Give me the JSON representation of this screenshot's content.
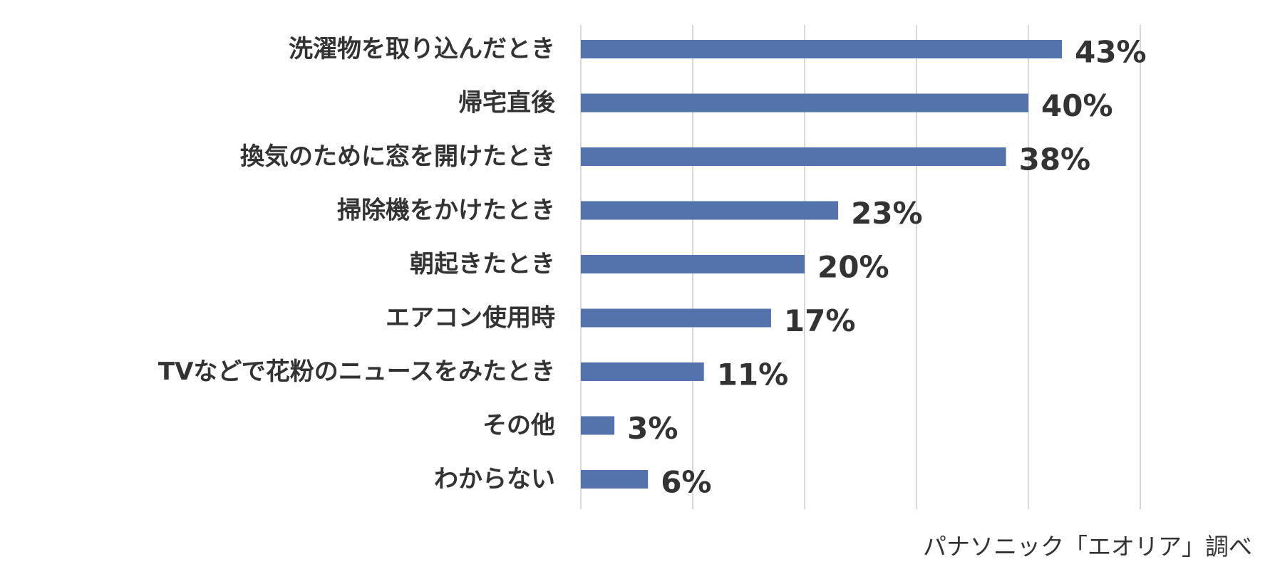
{
  "chart_data": {
    "type": "bar",
    "orientation": "horizontal",
    "categories": [
      "洗濯物を取り込んだとき",
      "帰宅直後",
      "換気のために窓を開けたとき",
      "掃除機をかけたとき",
      "朝起きたとき",
      "エアコン使用時",
      "TVなどで花粉のニュースをみたとき",
      "その他",
      "わからない"
    ],
    "values": [
      43,
      40,
      38,
      23,
      20,
      17,
      11,
      3,
      6
    ],
    "value_labels": [
      "43%",
      "40%",
      "38%",
      "23%",
      "20%",
      "17%",
      "11%",
      "3%",
      "6%"
    ],
    "xlim": [
      0,
      50
    ],
    "grid": true,
    "bar_color": "#5472ab"
  },
  "source": "パナソニック「エオリア」調べ"
}
